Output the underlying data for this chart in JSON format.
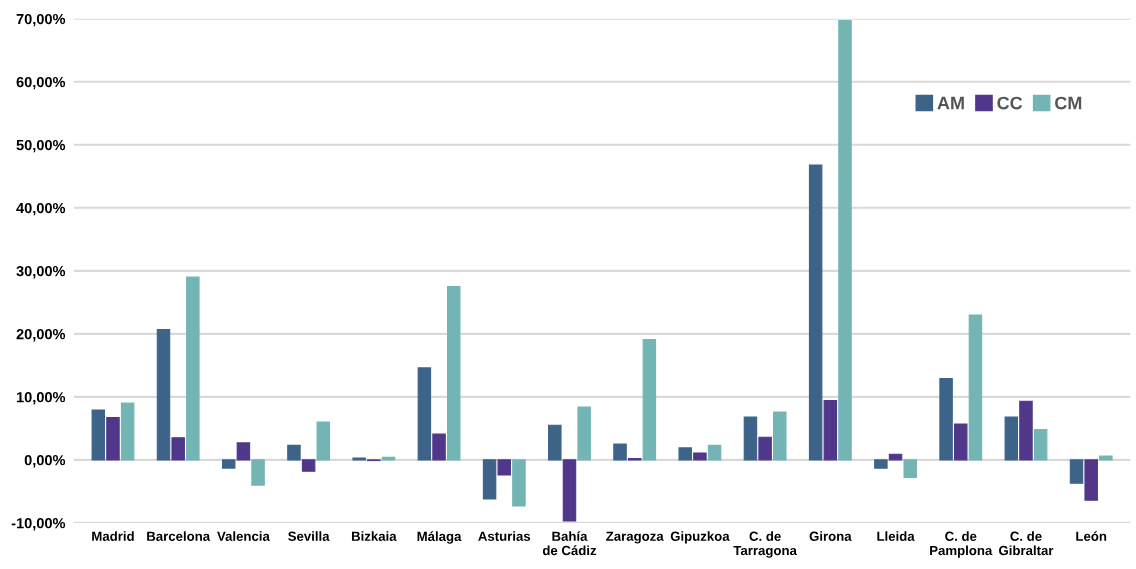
{
  "chart_data": {
    "type": "bar",
    "categories": [
      "Madrid",
      "Barcelona",
      "Valencia",
      "Sevilla",
      "Bizkaia",
      "Málaga",
      "Asturias",
      "Bahía\nde Cádiz",
      "Zaragoza",
      "Gipuzkoa",
      "C. de\nTarragona",
      "Girona",
      "Lleida",
      "C. de\nPamplona",
      "C. de\nGibraltar",
      "León"
    ],
    "series": [
      {
        "name": "AM",
        "color": "#3d6389",
        "values": [
          7.9,
          20.7,
          -1.3,
          2.3,
          0.3,
          14.6,
          -6.2,
          5.5,
          2.5,
          1.9,
          6.8,
          46.8,
          -1.3,
          12.9,
          6.8,
          -3.7
        ]
      },
      {
        "name": "CC",
        "color": "#51378a",
        "values": [
          6.7,
          3.5,
          2.7,
          -1.8,
          -0.1,
          4.1,
          -2.4,
          -9.7,
          0.2,
          1.1,
          3.6,
          9.4,
          0.9,
          5.7,
          9.3,
          -6.4
        ]
      },
      {
        "name": "CM",
        "color": "#73b5b4",
        "values": [
          9.0,
          29.0,
          -4.0,
          6.0,
          0.4,
          27.5,
          -7.3,
          8.4,
          19.1,
          2.3,
          7.6,
          69.7,
          -2.8,
          23.0,
          4.8,
          0.6
        ]
      }
    ],
    "ylim": [
      -10,
      70
    ],
    "yticks": [
      {
        "value": -10,
        "label": "-10,00%"
      },
      {
        "value": 0,
        "label": "0,00%"
      },
      {
        "value": 10,
        "label": "10,00%"
      },
      {
        "value": 20,
        "label": "20,00%"
      },
      {
        "value": 30,
        "label": "30,00%"
      },
      {
        "value": 40,
        "label": "40,00%"
      },
      {
        "value": 50,
        "label": "50,00%"
      },
      {
        "value": 60,
        "label": "60,00%"
      },
      {
        "value": 70,
        "label": "70,00%"
      }
    ],
    "grid": "y",
    "legend": "top right"
  }
}
